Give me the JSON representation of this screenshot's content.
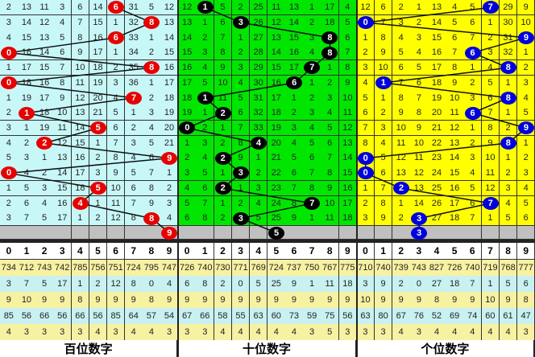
{
  "colors": {
    "hundreds_bg": "#c8f7f8",
    "tens_bg": "#00e600",
    "units_bg": "#ffff00",
    "hundreds_ball": "#e60000",
    "tens_ball": "#000000",
    "units_ball": "#0000dd"
  },
  "digit_headers": [
    "0",
    "1",
    "2",
    "3",
    "4",
    "5",
    "6",
    "7",
    "8",
    "9"
  ],
  "panels": [
    {
      "label": "百位数字",
      "rows": [
        [
          2,
          13,
          11,
          3,
          6,
          14,
          6,
          31,
          5,
          12
        ],
        [
          3,
          14,
          12,
          4,
          7,
          15,
          1,
          32,
          8,
          13
        ],
        [
          4,
          15,
          13,
          5,
          8,
          16,
          6,
          33,
          1,
          14
        ],
        [
          0,
          16,
          14,
          6,
          9,
          17,
          1,
          34,
          2,
          15
        ],
        [
          1,
          17,
          15,
          7,
          10,
          18,
          2,
          35,
          8,
          16
        ],
        [
          0,
          18,
          16,
          8,
          11,
          19,
          3,
          36,
          1,
          17
        ],
        [
          1,
          19,
          17,
          9,
          12,
          20,
          4,
          7,
          2,
          18
        ],
        [
          2,
          1,
          18,
          10,
          13,
          21,
          5,
          1,
          3,
          19
        ],
        [
          3,
          1,
          19,
          11,
          14,
          5,
          6,
          2,
          4,
          20
        ],
        [
          4,
          2,
          2,
          12,
          15,
          1,
          7,
          3,
          5,
          21
        ],
        [
          5,
          3,
          1,
          13,
          16,
          2,
          8,
          4,
          6,
          9
        ],
        [
          0,
          4,
          2,
          14,
          17,
          3,
          9,
          5,
          7,
          1
        ],
        [
          1,
          5,
          3,
          15,
          18,
          5,
          10,
          6,
          8,
          2
        ],
        [
          2,
          6,
          4,
          16,
          4,
          1,
          11,
          7,
          9,
          3
        ],
        [
          3,
          7,
          5,
          17,
          1,
          2,
          12,
          8,
          8,
          4
        ]
      ],
      "balls": [
        6,
        8,
        6,
        0,
        8,
        0,
        7,
        1,
        5,
        2,
        9,
        0,
        5,
        4,
        8
      ],
      "next_ball": 9,
      "stats": [
        [
          734,
          712,
          743,
          742,
          785,
          756,
          751,
          724,
          795,
          747
        ],
        [
          3,
          7,
          5,
          17,
          1,
          2,
          12,
          8,
          0,
          4
        ],
        [
          9,
          10,
          9,
          9,
          8,
          9,
          9,
          9,
          8,
          9
        ],
        [
          85,
          56,
          66,
          56,
          66,
          56,
          85,
          64,
          57,
          54
        ],
        [
          4,
          3,
          3,
          3,
          3,
          4,
          3,
          4,
          4,
          3
        ]
      ]
    },
    {
      "label": "十位数字",
      "rows": [
        [
          12,
          1,
          5,
          2,
          25,
          11,
          13,
          1,
          17,
          4
        ],
        [
          13,
          1,
          6,
          3,
          26,
          12,
          14,
          2,
          18,
          5
        ],
        [
          14,
          2,
          7,
          1,
          27,
          13,
          15,
          3,
          8,
          6
        ],
        [
          15,
          3,
          8,
          2,
          28,
          14,
          16,
          4,
          8,
          7
        ],
        [
          16,
          4,
          9,
          3,
          29,
          15,
          17,
          7,
          1,
          8
        ],
        [
          17,
          5,
          10,
          4,
          30,
          16,
          6,
          1,
          2,
          9
        ],
        [
          18,
          1,
          11,
          5,
          31,
          17,
          1,
          2,
          3,
          10
        ],
        [
          19,
          1,
          2,
          6,
          32,
          18,
          2,
          3,
          4,
          11
        ],
        [
          0,
          2,
          1,
          7,
          33,
          19,
          3,
          4,
          5,
          12
        ],
        [
          1,
          3,
          2,
          8,
          4,
          20,
          4,
          5,
          6,
          13
        ],
        [
          2,
          4,
          2,
          9,
          1,
          21,
          5,
          6,
          7,
          14
        ],
        [
          3,
          5,
          1,
          3,
          2,
          22,
          6,
          7,
          8,
          15
        ],
        [
          4,
          6,
          2,
          1,
          3,
          23,
          7,
          8,
          9,
          16
        ],
        [
          5,
          7,
          1,
          2,
          4,
          24,
          8,
          7,
          10,
          17
        ],
        [
          6,
          8,
          2,
          3,
          5,
          25,
          9,
          1,
          11,
          18
        ]
      ],
      "balls": [
        1,
        3,
        8,
        8,
        7,
        6,
        1,
        2,
        0,
        4,
        2,
        3,
        2,
        7,
        3
      ],
      "next_ball": 5,
      "stats": [
        [
          726,
          740,
          730,
          771,
          769,
          724,
          737,
          750,
          767,
          775
        ],
        [
          6,
          8,
          2,
          0,
          5,
          25,
          9,
          1,
          11,
          18
        ],
        [
          9,
          9,
          9,
          9,
          9,
          9,
          9,
          9,
          9,
          9
        ],
        [
          67,
          66,
          58,
          55,
          63,
          60,
          73,
          59,
          75,
          56
        ],
        [
          3,
          3,
          4,
          4,
          4,
          4,
          4,
          3,
          5,
          3
        ]
      ]
    },
    {
      "label": "个位数字",
      "rows": [
        [
          12,
          6,
          2,
          1,
          13,
          4,
          5,
          7,
          29,
          9
        ],
        [
          0,
          7,
          3,
          2,
          14,
          5,
          6,
          1,
          30,
          10
        ],
        [
          1,
          8,
          4,
          3,
          15,
          6,
          7,
          2,
          31,
          9
        ],
        [
          2,
          9,
          5,
          4,
          16,
          7,
          6,
          3,
          32,
          1
        ],
        [
          3,
          10,
          6,
          5,
          17,
          8,
          1,
          4,
          8,
          2
        ],
        [
          4,
          1,
          7,
          6,
          18,
          9,
          2,
          5,
          1,
          3
        ],
        [
          5,
          1,
          8,
          7,
          19,
          10,
          3,
          6,
          8,
          4
        ],
        [
          6,
          2,
          9,
          8,
          20,
          11,
          6,
          7,
          1,
          5
        ],
        [
          7,
          3,
          10,
          9,
          21,
          12,
          1,
          8,
          2,
          9
        ],
        [
          8,
          4,
          11,
          10,
          22,
          13,
          2,
          9,
          8,
          1
        ],
        [
          0,
          5,
          12,
          11,
          23,
          14,
          3,
          10,
          1,
          2
        ],
        [
          0,
          6,
          13,
          12,
          24,
          15,
          4,
          11,
          2,
          3
        ],
        [
          1,
          7,
          2,
          13,
          25,
          16,
          5,
          12,
          3,
          4
        ],
        [
          2,
          8,
          1,
          14,
          26,
          17,
          6,
          7,
          4,
          5
        ],
        [
          3,
          9,
          2,
          3,
          27,
          18,
          7,
          1,
          5,
          6
        ]
      ],
      "balls": [
        7,
        0,
        9,
        6,
        8,
        1,
        8,
        6,
        9,
        8,
        0,
        0,
        2,
        7,
        3
      ],
      "next_ball": 3,
      "stats": [
        [
          710,
          740,
          739,
          743,
          827,
          726,
          740,
          719,
          768,
          777
        ],
        [
          3,
          9,
          2,
          0,
          27,
          18,
          7,
          1,
          5,
          6
        ],
        [
          10,
          9,
          9,
          9,
          8,
          9,
          9,
          10,
          9,
          8
        ],
        [
          63,
          80,
          67,
          76,
          52,
          69,
          74,
          60,
          61,
          47
        ],
        [
          3,
          3,
          4,
          3,
          4,
          4,
          4,
          4,
          4,
          3
        ]
      ]
    }
  ]
}
